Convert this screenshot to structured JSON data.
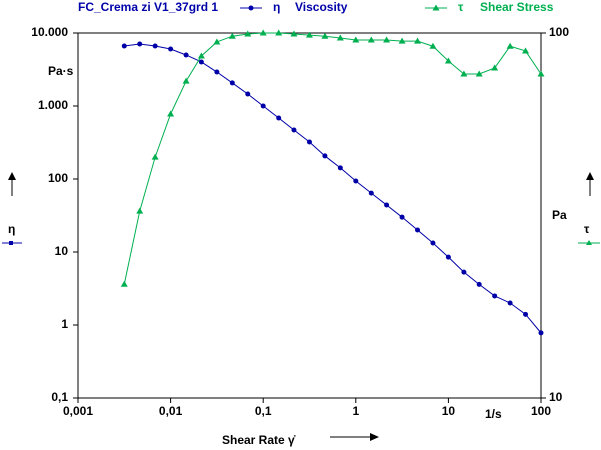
{
  "chart_data": {
    "type": "line",
    "title": "FC_Crema zi V1_37grd 1",
    "x_label": "Shear Rate γ̇",
    "x_unit": "1/s",
    "y_label": "η",
    "y_unit": "Pa·s",
    "y2_label": "τ",
    "y2_unit": "Pa",
    "xscale": "log",
    "yscale": "log",
    "y2scale": "log",
    "x": [
      0.00316,
      0.00464,
      0.00681,
      0.01,
      0.0147,
      0.0215,
      0.0316,
      0.0464,
      0.0681,
      0.1,
      0.147,
      0.215,
      0.316,
      0.464,
      0.681,
      1,
      1.47,
      2.15,
      3.16,
      4.64,
      6.81,
      10,
      14.7,
      21.5,
      31.6,
      46.4,
      68.1,
      100
    ],
    "series": [
      {
        "name": "Viscosity",
        "symbol": "η",
        "color": "#0000a8",
        "marker": "circle",
        "values": [
          6640,
          7070,
          6640,
          6040,
          5000,
          4010,
          2920,
          2070,
          1460,
          1000,
          685,
          469,
          321,
          207,
          142,
          94,
          64,
          44,
          30,
          20,
          13.3,
          8.5,
          5.3,
          3.6,
          2.5,
          2.0,
          1.4,
          0.78
        ]
      },
      {
        "name": "Shear Stress",
        "symbol": "τ",
        "color": "#00b050",
        "marker": "triangle",
        "axis": "y2",
        "values": [
          20.5,
          32.5,
          45.7,
          60,
          73.8,
          86.5,
          94.5,
          98,
          99.4,
          100,
          100,
          99.4,
          98.7,
          98,
          96.9,
          95.7,
          95.7,
          95.7,
          95,
          95,
          92,
          83.8,
          77.2,
          77.2,
          80.2,
          92,
          89.3,
          77.2
        ]
      }
    ],
    "xlim": [
      0.001,
      100
    ],
    "xticks": [
      {
        "value": 0.001,
        "label": "0,001"
      },
      {
        "value": 0.01,
        "label": "0,01"
      },
      {
        "value": 0.1,
        "label": "0,1"
      },
      1,
      10,
      100
    ],
    "ylim": [
      0.1,
      10000
    ],
    "yticks": [
      {
        "value": 0.1,
        "label": "0,1"
      },
      1,
      10,
      100,
      {
        "value": 1000,
        "label": "1.000"
      },
      {
        "value": 10000,
        "label": "10.000"
      }
    ],
    "y2lim": [
      10,
      100
    ],
    "y2ticks": [
      10,
      100
    ],
    "grid": false
  }
}
